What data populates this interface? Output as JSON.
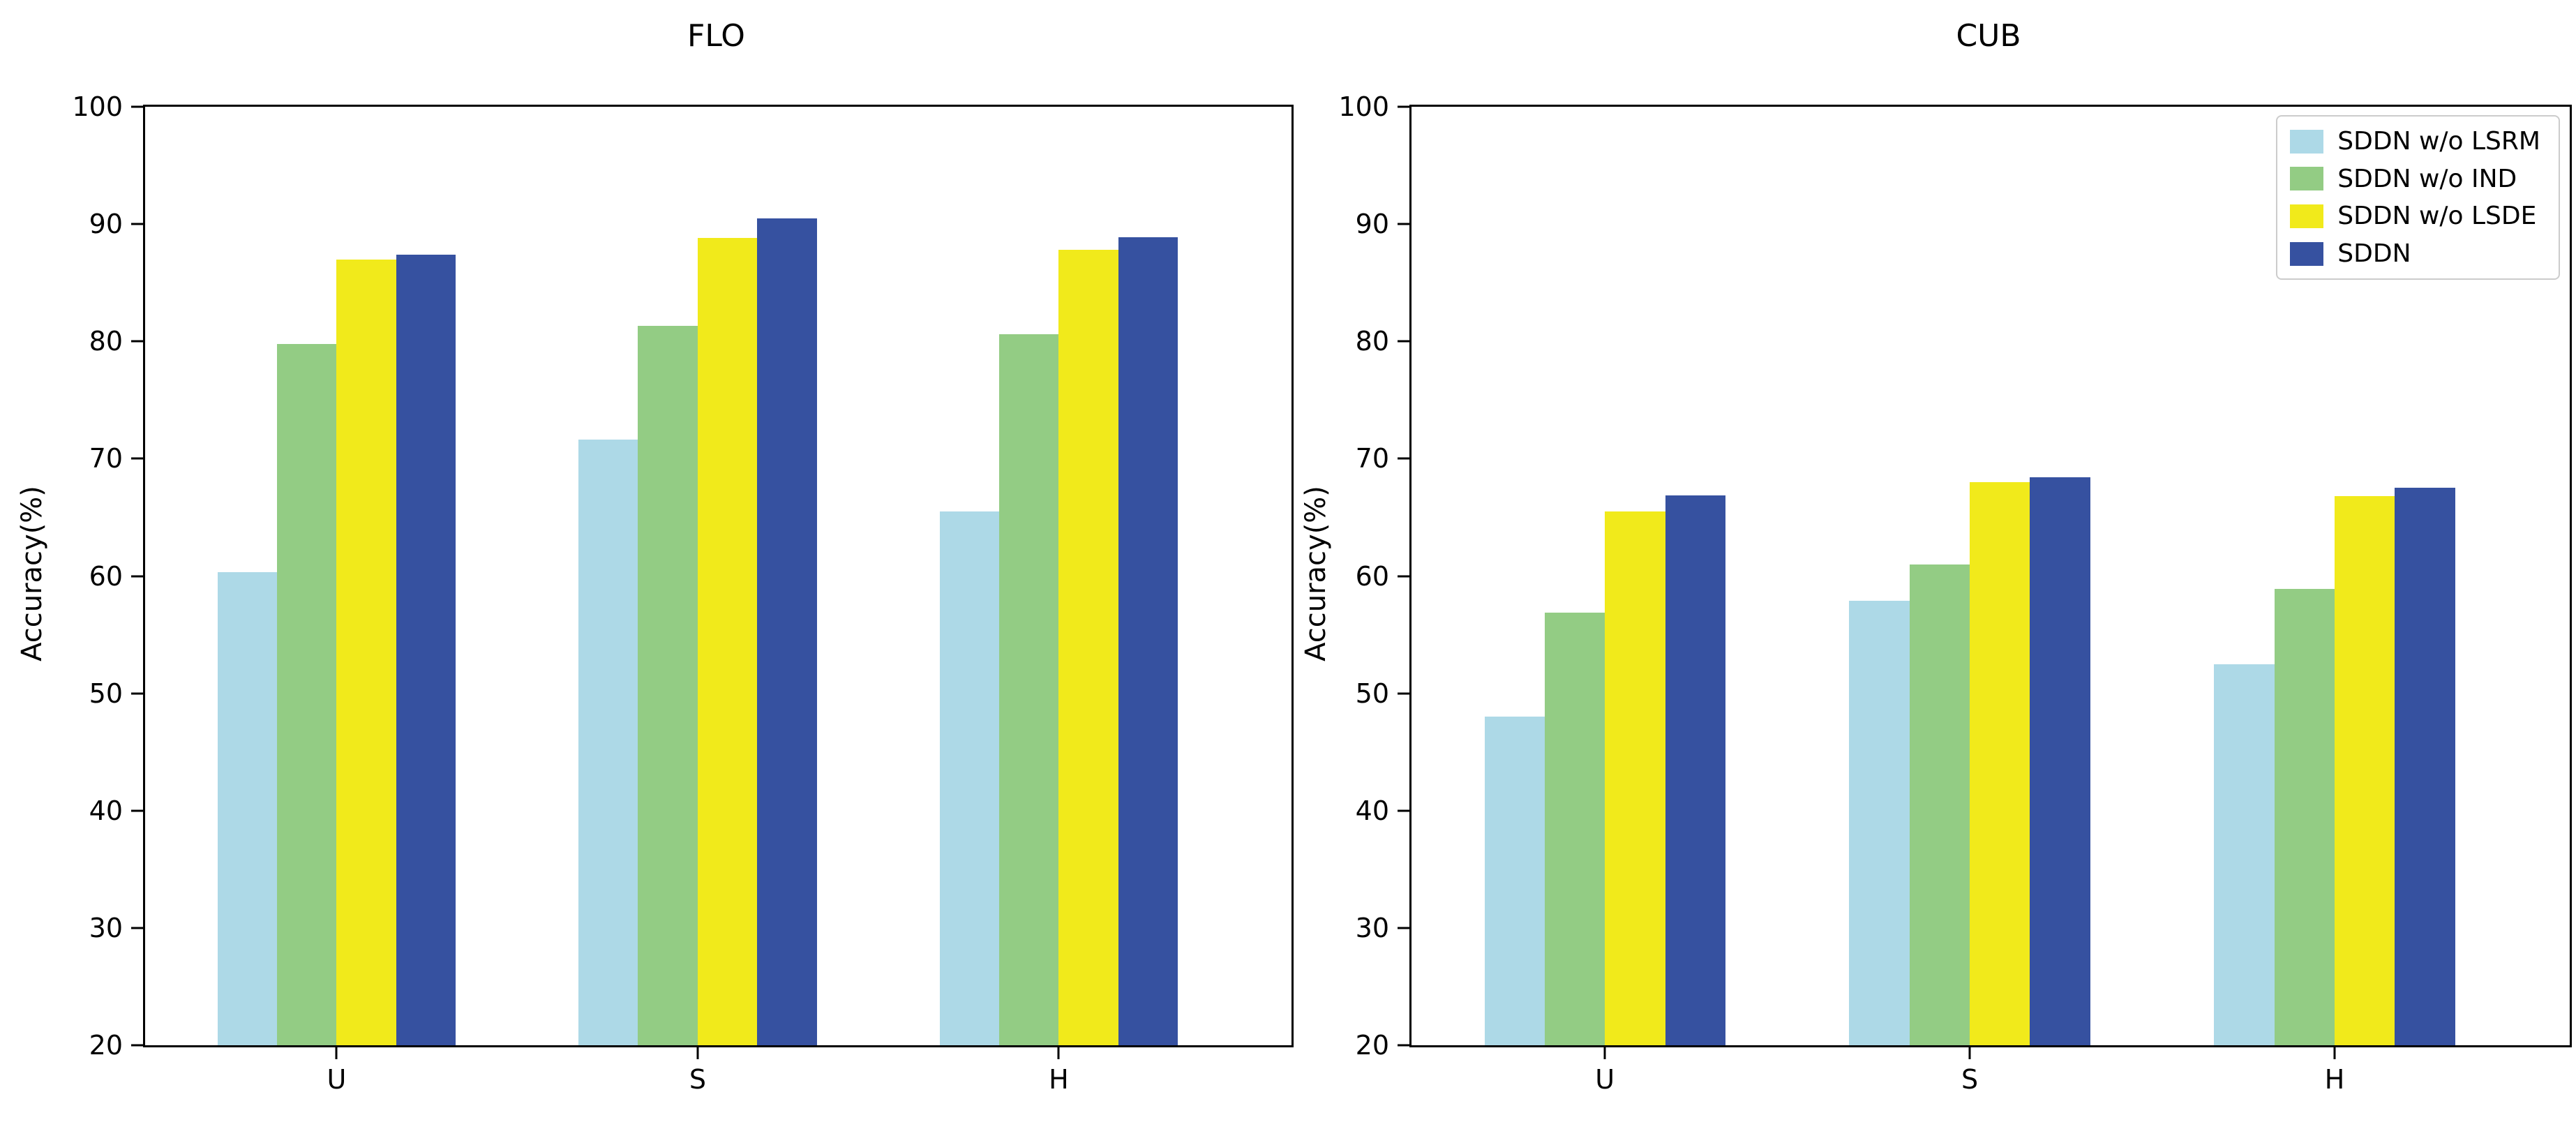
{
  "figure": {
    "background_color": "#ffffff",
    "text_color": "#000000"
  },
  "legend": {
    "position": "upper right",
    "items": [
      {
        "label": "SDDN w/o LSRM",
        "color": "#ADD9E7"
      },
      {
        "label": "SDDN w/o IND",
        "color": "#93CC84"
      },
      {
        "label": "SDDN w/o LSDE",
        "color": "#F1EA1B"
      },
      {
        "label": "SDDN",
        "color": "#3651A0"
      }
    ]
  },
  "chart_data": [
    {
      "type": "bar",
      "title": "FLO",
      "xlabel": "",
      "ylabel": "Accuracy(%)",
      "categories": [
        "U",
        "S",
        "H"
      ],
      "ylim": [
        20,
        100
      ],
      "yticks": [
        20,
        30,
        40,
        50,
        60,
        70,
        80,
        90,
        100
      ],
      "grid": false,
      "legend": false,
      "series": [
        {
          "name": "SDDN w/o LSRM",
          "color": "#ADD9E7",
          "values": [
            60.3,
            71.6,
            65.5
          ]
        },
        {
          "name": "SDDN w/o IND",
          "color": "#93CC84",
          "values": [
            79.8,
            81.3,
            80.6
          ]
        },
        {
          "name": "SDDN w/o LSDE",
          "color": "#F1EA1B",
          "values": [
            87.0,
            88.8,
            87.8
          ]
        },
        {
          "name": "SDDN",
          "color": "#3651A0",
          "values": [
            87.4,
            90.5,
            88.9
          ]
        }
      ]
    },
    {
      "type": "bar",
      "title": "CUB",
      "xlabel": "",
      "ylabel": "Accuracy(%)",
      "categories": [
        "U",
        "S",
        "H"
      ],
      "ylim": [
        20,
        100
      ],
      "yticks": [
        20,
        30,
        40,
        50,
        60,
        70,
        80,
        90,
        100
      ],
      "grid": false,
      "legend": true,
      "legend_position": "upper right",
      "series": [
        {
          "name": "SDDN w/o LSRM",
          "color": "#ADD9E7",
          "values": [
            48.0,
            57.9,
            52.5
          ]
        },
        {
          "name": "SDDN w/o IND",
          "color": "#93CC84",
          "values": [
            56.9,
            61.0,
            58.9
          ]
        },
        {
          "name": "SDDN w/o LSDE",
          "color": "#F1EA1B",
          "values": [
            65.5,
            68.0,
            66.8
          ]
        },
        {
          "name": "SDDN",
          "color": "#3651A0",
          "values": [
            66.9,
            68.4,
            67.5
          ]
        }
      ]
    }
  ]
}
